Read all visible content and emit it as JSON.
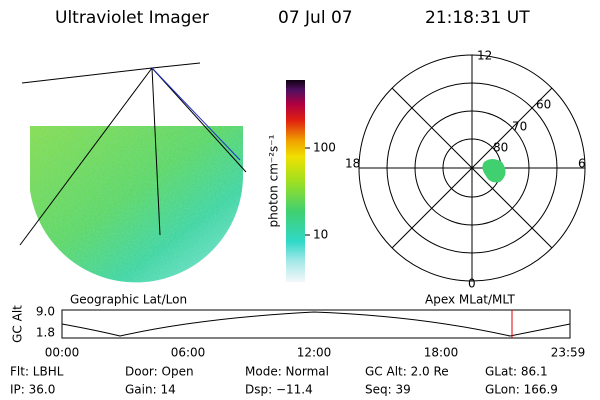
{
  "header": {
    "instrument": "Ultraviolet Imager",
    "date": "07 Jul 07",
    "time": "21:18:31 UT"
  },
  "colorbar": {
    "label": "photon cm⁻²s⁻¹",
    "ticks": [
      "100",
      "10"
    ]
  },
  "polar": {
    "mlt_labels": [
      "12",
      "18",
      "6",
      "0"
    ],
    "mlat_labels": [
      "60",
      "70",
      "80"
    ]
  },
  "orbit": {
    "left_title": "Geographic Lat/Lon",
    "right_title": "Apex MLat/MLT",
    "y_label": "GC Alt",
    "y_ticks": [
      "9.0",
      "1.8"
    ],
    "time_ticks": [
      "00:00",
      "06:00",
      "12:00",
      "18:00",
      "23:59"
    ]
  },
  "info": [
    [
      "Flt: LBHL",
      "Door: Open",
      "Mode: Normal",
      "GC Alt: 2.0 Re",
      "GLat: 86.1"
    ],
    [
      "IP: 36.0",
      "Gain: 14",
      "Dsp: −11.4",
      "Seq: 39",
      "GLon: 166.9"
    ]
  ]
}
